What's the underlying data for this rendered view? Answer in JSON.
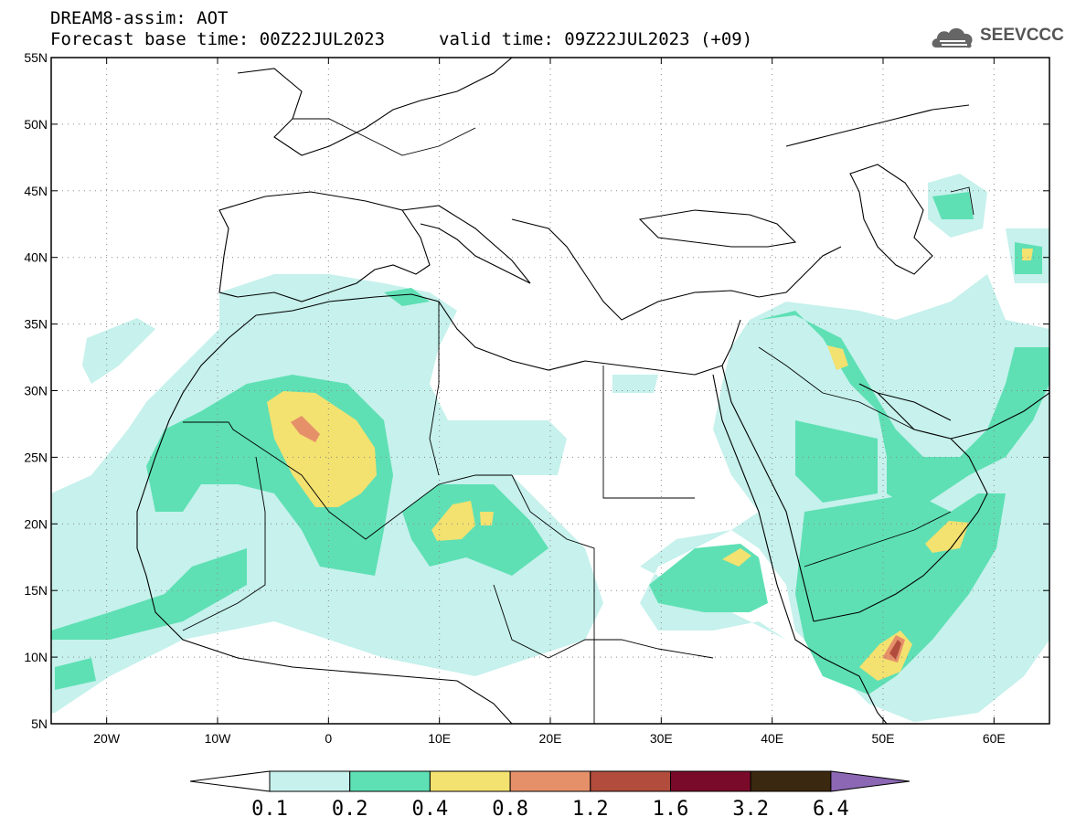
{
  "header": {
    "title": "DREAM8-assim: AOT",
    "base_time_label": "Forecast base time: 00Z22JUL2023",
    "valid_time_label": "valid time: 09Z22JUL2023 (+09)"
  },
  "logo": {
    "text": "SEEVCCC",
    "icon": "cloud-icon"
  },
  "map": {
    "lat_labels": [
      "55N",
      "50N",
      "45N",
      "40N",
      "35N",
      "30N",
      "25N",
      "20N",
      "15N",
      "10N",
      "5N"
    ],
    "lon_labels": [
      "20W",
      "10W",
      "0",
      "10E",
      "20E",
      "30E",
      "40E",
      "50E",
      "60E"
    ],
    "lat_values": [
      55,
      50,
      45,
      40,
      35,
      30,
      25,
      20,
      15,
      10,
      5
    ],
    "lon_values": [
      -20,
      -10,
      0,
      10,
      20,
      30,
      40,
      50,
      60
    ],
    "extent": {
      "lon_min": -25,
      "lon_max": 65,
      "lat_min": 5,
      "lat_max": 55
    },
    "gridlines": "dotted",
    "variable": "AOT"
  },
  "colorbar": {
    "labels": [
      "0.1",
      "0.2",
      "0.4",
      "0.8",
      "1.2",
      "1.6",
      "3.2",
      "6.4"
    ],
    "colors": [
      "#ffffff",
      "#c6f1ec",
      "#5ee0b4",
      "#f3e170",
      "#e6906a",
      "#b24c3c",
      "#7a0a2a",
      "#3b2810",
      "#8c67b4"
    ],
    "extend": "both"
  }
}
